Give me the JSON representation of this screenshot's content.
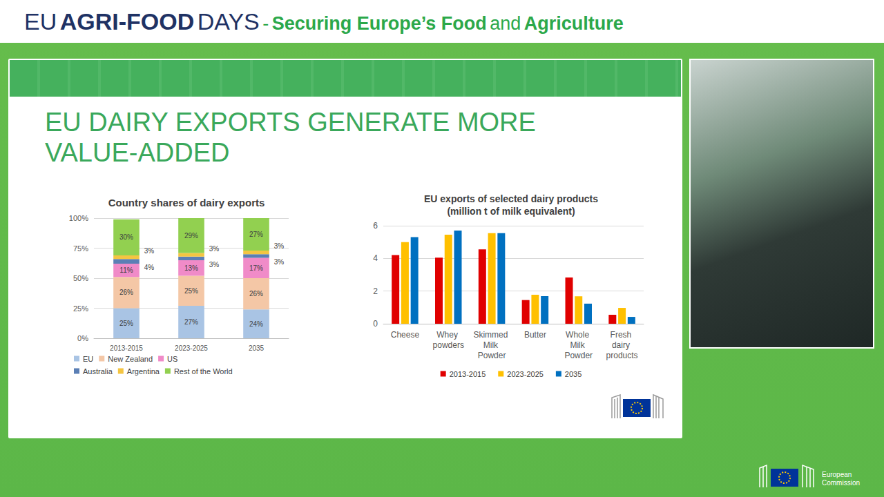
{
  "page": {
    "header": {
      "event": [
        {
          "text": "EU",
          "bold": false
        },
        {
          "text": "AGRI-FOOD",
          "bold": true
        },
        {
          "text": "DAYS",
          "bold": false
        }
      ],
      "separator": "-",
      "tagline": [
        {
          "text": "Securing Europe’s Food",
          "bold": true
        },
        {
          "text": "and",
          "bold": false
        },
        {
          "text": "Agriculture",
          "bold": true
        }
      ]
    },
    "slide_title": "EU DAIRY EXPORTS GENERATE MORE VALUE-ADDED",
    "footer": {
      "logo_text": "European Commission"
    }
  },
  "chart_data": [
    {
      "type": "bar",
      "stacked": true,
      "title": "Country shares of dairy exports",
      "categories": [
        "2013-2015",
        "2023-2025",
        "2035"
      ],
      "series": [
        {
          "name": "EU",
          "color": "#a9c4e4",
          "values": [
            25,
            27,
            24
          ],
          "value_labels": [
            "25%",
            "27%",
            "24%"
          ]
        },
        {
          "name": "New Zealand",
          "color": "#f4c7a6",
          "values": [
            26,
            25,
            26
          ],
          "value_labels": [
            "26%",
            "25%",
            "26%"
          ]
        },
        {
          "name": "US",
          "color": "#f08bc8",
          "values": [
            11,
            13,
            17
          ],
          "value_labels": [
            "11%",
            "13%",
            "17%"
          ]
        },
        {
          "name": "Australia",
          "color": "#5b7fb5",
          "values": [
            4,
            3,
            3
          ],
          "value_labels": [
            "4%",
            "3%",
            "3%"
          ]
        },
        {
          "name": "Argentina",
          "color": "#f4c542",
          "values": [
            3,
            3,
            3
          ],
          "value_labels": [
            "3%",
            "3%",
            "3%"
          ]
        },
        {
          "name": "Rest of the World",
          "color": "#92d050",
          "values": [
            30,
            29,
            27
          ],
          "value_labels": [
            "30%",
            "29%",
            "27%"
          ]
        }
      ],
      "ylim": [
        0,
        100
      ],
      "yticks": [
        {
          "value": 0,
          "label": "0%"
        },
        {
          "value": 25,
          "label": "25%"
        },
        {
          "value": 50,
          "label": "50%"
        },
        {
          "value": 75,
          "label": "75%"
        },
        {
          "value": 100,
          "label": "100%"
        }
      ],
      "grid": true,
      "legend": "bottom",
      "data_labels": true
    },
    {
      "type": "bar",
      "title": "EU exports of selected dairy products",
      "subtitle": "(million t of milk equivalent)",
      "categories": [
        "Cheese",
        "Whey powders",
        "Skimmed Milk Powder",
        "Butter",
        "Whole Milk Powder",
        "Fresh dairy products"
      ],
      "series": [
        {
          "name": "2013-2015",
          "color": "#e00000",
          "values": [
            4.2,
            4.05,
            4.55,
            1.45,
            2.83,
            0.55
          ]
        },
        {
          "name": "2023-2025",
          "color": "#ffc000",
          "values": [
            5.0,
            5.45,
            5.55,
            1.77,
            1.68,
            0.97
          ]
        },
        {
          "name": "2035",
          "color": "#0070c0",
          "values": [
            5.3,
            5.7,
            5.55,
            1.69,
            1.23,
            0.42
          ]
        }
      ],
      "ylim": [
        0,
        6
      ],
      "yticks": [
        0,
        2,
        4,
        6
      ],
      "grid": true,
      "legend": "bottom",
      "data_labels": false
    }
  ]
}
